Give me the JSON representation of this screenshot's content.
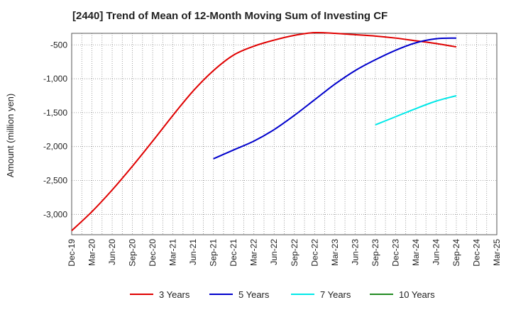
{
  "chart_data": {
    "type": "line",
    "title": "[2440]  Trend of Mean of 12-Month Moving Sum of Investing CF",
    "ylabel": "Amount (million yen)",
    "xlabel": "",
    "ylim": [
      -3300,
      -330
    ],
    "grid": true,
    "legend_position": "bottom",
    "y_ticks": [
      {
        "value": -500,
        "label": "-500"
      },
      {
        "value": -1000,
        "label": "-1,000"
      },
      {
        "value": -1500,
        "label": "-1,500"
      },
      {
        "value": -2000,
        "label": "-2,000"
      },
      {
        "value": -2500,
        "label": "-2,500"
      },
      {
        "value": -3000,
        "label": "-3,000"
      }
    ],
    "x_tick_labels": [
      "Dec-19",
      "Mar-20",
      "Jun-20",
      "Sep-20",
      "Dec-20",
      "Mar-21",
      "Jun-21",
      "Sep-21",
      "Dec-21",
      "Mar-22",
      "Jun-22",
      "Sep-22",
      "Dec-22",
      "Mar-23",
      "Jun-23",
      "Sep-23",
      "Dec-23",
      "Mar-24",
      "Jun-24",
      "Sep-24",
      "Dec-24",
      "Mar-25"
    ],
    "x": [
      "Dec-19",
      "Mar-20",
      "Jun-20",
      "Sep-20",
      "Dec-20",
      "Mar-21",
      "Jun-21",
      "Sep-21",
      "Dec-21",
      "Mar-22",
      "Jun-22",
      "Sep-22",
      "Dec-22",
      "Mar-23",
      "Jun-23",
      "Sep-23",
      "Dec-23",
      "Mar-24",
      "Jun-24",
      "Sep-24"
    ],
    "series": [
      {
        "name": "3 Years",
        "color": "#e00000",
        "values": [
          -3240,
          -2960,
          -2640,
          -2290,
          -1920,
          -1540,
          -1180,
          -880,
          -650,
          -520,
          -430,
          -360,
          -320,
          -330,
          -350,
          -370,
          -400,
          -440,
          -480,
          -530
        ]
      },
      {
        "name": "5 Years",
        "color": "#0000cc",
        "values": [
          null,
          null,
          null,
          null,
          null,
          null,
          null,
          -2180,
          -2050,
          -1920,
          -1750,
          -1540,
          -1310,
          -1080,
          -880,
          -720,
          -580,
          -470,
          -410,
          -400
        ]
      },
      {
        "name": "7 Years",
        "color": "#00e8e8",
        "values": [
          null,
          null,
          null,
          null,
          null,
          null,
          null,
          null,
          null,
          null,
          null,
          null,
          null,
          null,
          null,
          -1680,
          -1560,
          -1440,
          -1330,
          -1250
        ]
      },
      {
        "name": "10 Years",
        "color": "#228b22",
        "values": [
          null,
          null,
          null,
          null,
          null,
          null,
          null,
          null,
          null,
          null,
          null,
          null,
          null,
          null,
          null,
          null,
          null,
          null,
          null,
          null
        ]
      }
    ]
  }
}
